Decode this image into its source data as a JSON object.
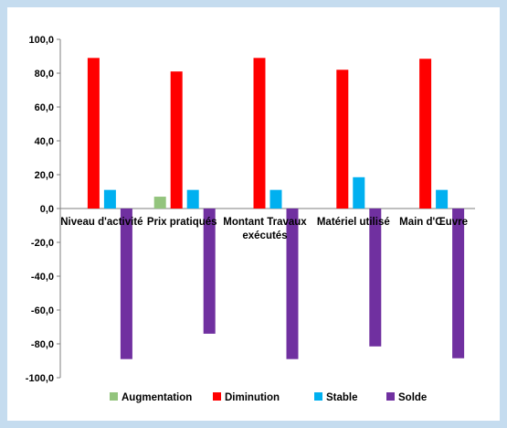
{
  "chart_data": {
    "type": "bar",
    "categories": [
      [
        "Niveau d'activité"
      ],
      [
        "Prix pratiqués"
      ],
      [
        "Montant Travaux",
        "exécutés"
      ],
      [
        "Matériel utilisé"
      ],
      [
        "Main d'Œuvre"
      ]
    ],
    "series": [
      {
        "name": "Augmentation",
        "color": "#93c47d",
        "values": [
          0,
          7,
          0,
          0,
          0
        ]
      },
      {
        "name": "Diminution",
        "color": "#ff0000",
        "values": [
          89,
          81,
          89,
          82,
          88.5
        ]
      },
      {
        "name": "Stable",
        "color": "#00b0f0",
        "values": [
          11,
          11,
          11,
          18.5,
          11
        ]
      },
      {
        "name": "Solde",
        "color": "#7030a0",
        "values": [
          -89,
          -74,
          -89,
          -81.5,
          -88.5
        ]
      }
    ],
    "yticks": [
      "100,0",
      "80,0",
      "60,0",
      "40,0",
      "20,0",
      "0,0",
      "-20,0",
      "-40,0",
      "-60,0",
      "-80,0",
      "-100,0"
    ],
    "ylim": [
      -100,
      100
    ],
    "grid": false,
    "legend_position": "bottom"
  }
}
